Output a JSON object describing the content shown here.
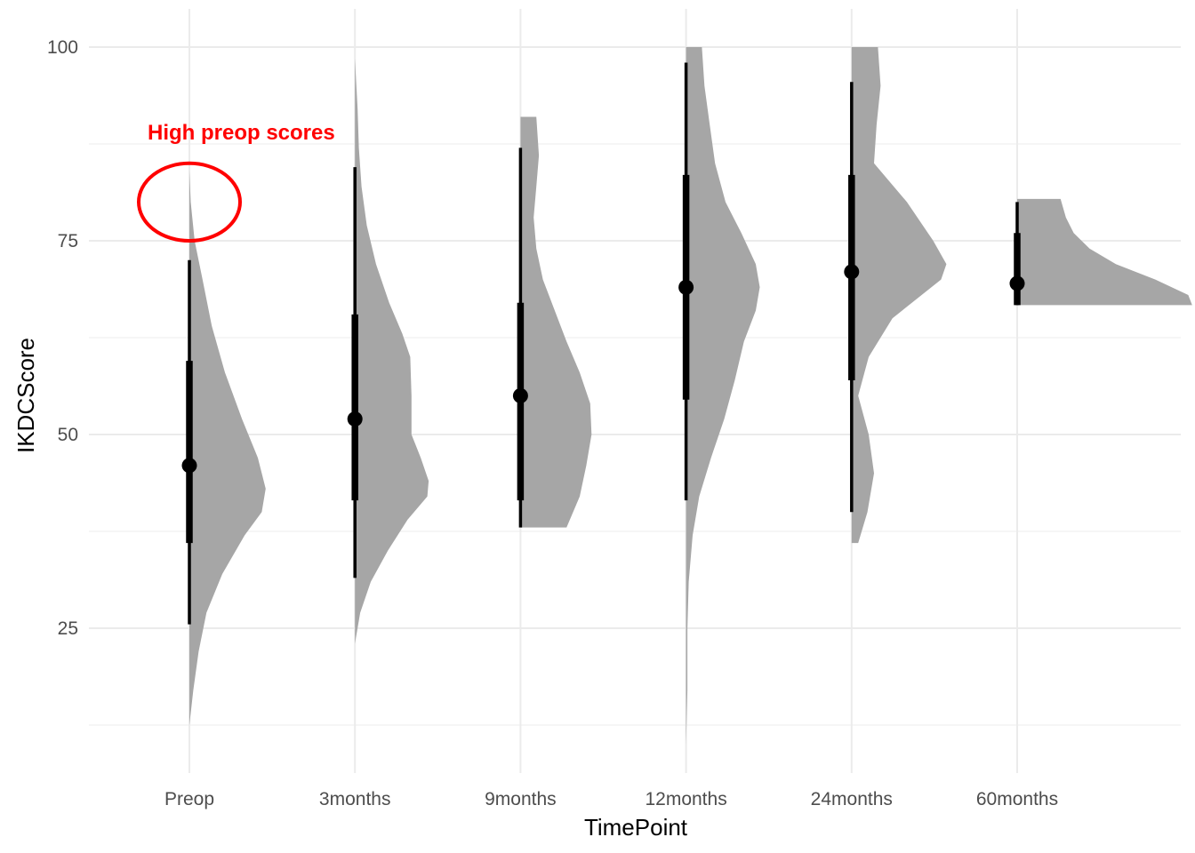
{
  "chart_data": {
    "type": "half-violin",
    "xlabel": "TimePoint",
    "ylabel": "IKDCScore",
    "ylim": [
      8,
      100
    ],
    "y_ticks": [
      25,
      50,
      75,
      100
    ],
    "y_minor_ticks": [
      12.5,
      37.5,
      62.5,
      87.5
    ],
    "categories": [
      "Preop",
      "3months",
      "9months",
      "12months",
      "24months",
      "60months"
    ],
    "fill_color": "#a6a6a6",
    "interval_color": "#000000",
    "grid": true,
    "legend": "none",
    "groups": [
      {
        "category": "Preop",
        "median": 46,
        "q1": 36,
        "q3": 59.5,
        "low": 25.5,
        "high": 72.5,
        "density": [
          [
            12.5,
            0.0
          ],
          [
            17,
            0.03
          ],
          [
            22,
            0.07
          ],
          [
            27,
            0.13
          ],
          [
            32,
            0.25
          ],
          [
            37,
            0.42
          ],
          [
            40,
            0.55
          ],
          [
            43,
            0.58
          ],
          [
            47,
            0.52
          ],
          [
            52,
            0.4
          ],
          [
            58,
            0.27
          ],
          [
            64,
            0.17
          ],
          [
            70,
            0.1
          ],
          [
            75,
            0.04
          ],
          [
            80,
            0.01
          ],
          [
            84,
            0.0
          ],
          [
            88,
            0.0
          ],
          [
            92.5,
            0.0
          ]
        ]
      },
      {
        "category": "3months",
        "median": 52,
        "q1": 41.5,
        "q3": 65.5,
        "low": 31.5,
        "high": 84.5,
        "density": [
          [
            23,
            0.0
          ],
          [
            27,
            0.04
          ],
          [
            31,
            0.12
          ],
          [
            35,
            0.25
          ],
          [
            39,
            0.4
          ],
          [
            42,
            0.55
          ],
          [
            44,
            0.56
          ],
          [
            47,
            0.5
          ],
          [
            50,
            0.43
          ],
          [
            55,
            0.43
          ],
          [
            60,
            0.42
          ],
          [
            63,
            0.36
          ],
          [
            67,
            0.26
          ],
          [
            72,
            0.16
          ],
          [
            77,
            0.09
          ],
          [
            82,
            0.05
          ],
          [
            87,
            0.03
          ],
          [
            92,
            0.02
          ],
          [
            98.5,
            0.0
          ]
        ]
      },
      {
        "category": "9months",
        "median": 55,
        "q1": 41.5,
        "q3": 67,
        "low": 38,
        "high": 87,
        "density": [
          [
            38,
            0.35
          ],
          [
            42,
            0.45
          ],
          [
            46,
            0.5
          ],
          [
            50,
            0.54
          ],
          [
            54,
            0.53
          ],
          [
            58,
            0.45
          ],
          [
            62,
            0.35
          ],
          [
            66,
            0.26
          ],
          [
            70,
            0.17
          ],
          [
            74,
            0.12
          ],
          [
            78,
            0.1
          ],
          [
            82,
            0.12
          ],
          [
            86,
            0.14
          ],
          [
            91,
            0.12
          ]
        ]
      },
      {
        "category": "12months",
        "median": 69,
        "q1": 54.5,
        "q3": 83.5,
        "low": 41.5,
        "high": 98,
        "density": [
          [
            10,
            0.0
          ],
          [
            17,
            0.01
          ],
          [
            25,
            0.01
          ],
          [
            31,
            0.02
          ],
          [
            37,
            0.05
          ],
          [
            42,
            0.1
          ],
          [
            47,
            0.19
          ],
          [
            52,
            0.29
          ],
          [
            57,
            0.37
          ],
          [
            62,
            0.44
          ],
          [
            66,
            0.53
          ],
          [
            69,
            0.56
          ],
          [
            72,
            0.53
          ],
          [
            76,
            0.42
          ],
          [
            80,
            0.3
          ],
          [
            85,
            0.22
          ],
          [
            90,
            0.18
          ],
          [
            95,
            0.14
          ],
          [
            100,
            0.12
          ]
        ]
      },
      {
        "category": "24months",
        "median": 71,
        "q1": 57,
        "q3": 83.5,
        "low": 40,
        "high": 95.5,
        "density": [
          [
            36,
            0.05
          ],
          [
            40,
            0.12
          ],
          [
            45,
            0.17
          ],
          [
            50,
            0.13
          ],
          [
            55,
            0.05
          ],
          [
            60,
            0.13
          ],
          [
            65,
            0.31
          ],
          [
            70,
            0.68
          ],
          [
            72,
            0.72
          ],
          [
            75,
            0.62
          ],
          [
            80,
            0.42
          ],
          [
            85,
            0.17
          ],
          [
            90,
            0.19
          ],
          [
            95,
            0.22
          ],
          [
            100,
            0.2
          ]
        ]
      },
      {
        "category": "60months",
        "median": 69.5,
        "q1": 66.7,
        "q3": 76,
        "low": 66.7,
        "high": 80,
        "density": [
          [
            66.7,
            1.33
          ],
          [
            68,
            1.3
          ],
          [
            70,
            1.05
          ],
          [
            72,
            0.75
          ],
          [
            74,
            0.55
          ],
          [
            76,
            0.43
          ],
          [
            78,
            0.37
          ],
          [
            80.4,
            0.33
          ]
        ]
      }
    ],
    "annotations": [
      {
        "text": "High preop scores",
        "color": "#ff0000",
        "category": "Preop",
        "y": 89,
        "circle": {
          "y": 80,
          "y_radius": 5,
          "x_offset_fraction": 0
        }
      }
    ]
  }
}
